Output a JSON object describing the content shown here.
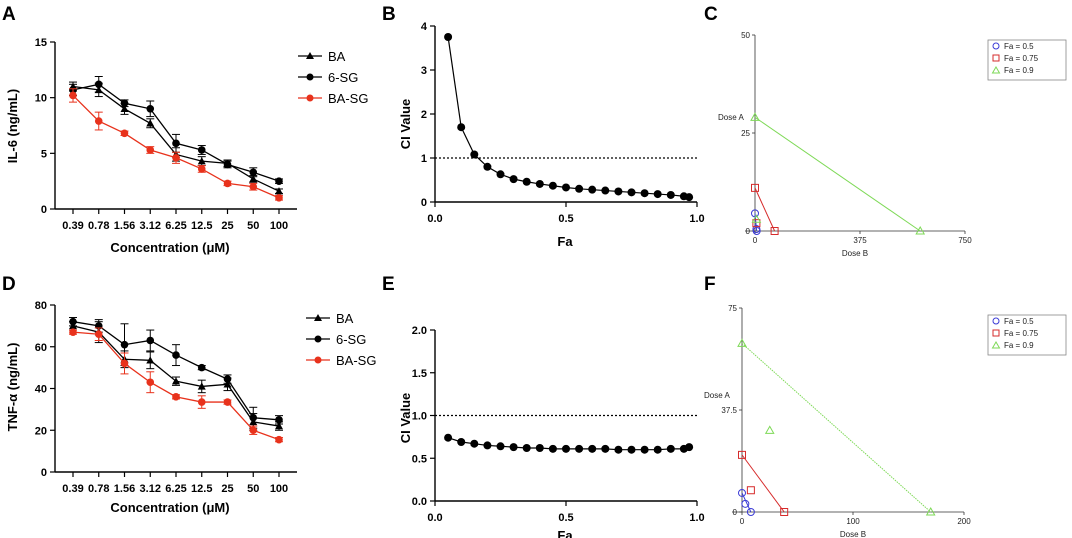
{
  "colors": {
    "ba": "#000000",
    "sg": "#000000",
    "basg": "#e8321c",
    "fa05": "#3b3bd6",
    "fa075": "#d62b2b",
    "fa09": "#7ed957"
  },
  "chart_data": [
    {
      "id": "A",
      "type": "line",
      "panel_label": "A",
      "categories": [
        "0.39",
        "0.78",
        "1.56",
        "3.12",
        "6.25",
        "12.5",
        "25",
        "50",
        "100"
      ],
      "xlabel": "Concentration (μM)",
      "ylabel": "IL-6 (ng/mL)",
      "ylim": [
        0,
        15
      ],
      "yticks": [
        "0",
        "5",
        "10",
        "15"
      ],
      "ytick_values": [
        0,
        5,
        10,
        15
      ],
      "series": [
        {
          "name": "BA",
          "marker": "triangle",
          "values": [
            11.0,
            10.7,
            9.0,
            7.7,
            4.9,
            4.3,
            4.1,
            2.7,
            1.6
          ],
          "errors": [
            0.4,
            0.6,
            0.5,
            0.4,
            0.6,
            0.4,
            0.3,
            0.3,
            0.2
          ]
        },
        {
          "name": "6-SG",
          "marker": "circle",
          "values": [
            10.7,
            11.2,
            9.5,
            9.0,
            5.9,
            5.3,
            4.0,
            3.3,
            2.5
          ],
          "errors": [
            0.5,
            0.7,
            0.3,
            0.7,
            0.8,
            0.4,
            0.3,
            0.4,
            0.2
          ]
        },
        {
          "name": "BA-SG",
          "marker": "circle",
          "values": [
            10.2,
            7.9,
            6.8,
            5.3,
            4.6,
            3.6,
            2.3,
            2.0,
            1.0
          ],
          "errors": [
            0.6,
            0.8,
            0.2,
            0.3,
            0.5,
            0.3,
            0.2,
            0.3,
            0.2
          ]
        }
      ]
    },
    {
      "id": "B",
      "type": "line",
      "panel_label": "B",
      "xlabel": "Fa",
      "ylabel": "CI Value",
      "xlim": [
        0,
        1
      ],
      "ylim": [
        0,
        4
      ],
      "xticks": [
        "0.0",
        "0.5",
        "1.0"
      ],
      "xtick_values": [
        0,
        0.5,
        1
      ],
      "yticks": [
        "0",
        "1",
        "2",
        "3",
        "4"
      ],
      "ytick_values": [
        0,
        1,
        2,
        3,
        4
      ],
      "reference_line": 1,
      "x": [
        0.05,
        0.1,
        0.15,
        0.2,
        0.25,
        0.3,
        0.35,
        0.4,
        0.45,
        0.5,
        0.55,
        0.6,
        0.65,
        0.7,
        0.75,
        0.8,
        0.85,
        0.9,
        0.95,
        0.97
      ],
      "y": [
        3.75,
        1.7,
        1.08,
        0.8,
        0.63,
        0.52,
        0.46,
        0.41,
        0.37,
        0.33,
        0.3,
        0.28,
        0.26,
        0.24,
        0.22,
        0.2,
        0.18,
        0.16,
        0.13,
        0.11
      ]
    },
    {
      "id": "C",
      "type": "scatter",
      "panel_label": "C",
      "xlabel": "Dose B",
      "ylabel": "Dose A",
      "xlim": [
        0,
        750
      ],
      "ylim": [
        0,
        50
      ],
      "xticks": [
        "0",
        "375",
        "750"
      ],
      "xtick_values": [
        0,
        375,
        750
      ],
      "yticks": [
        "0",
        "25",
        "50"
      ],
      "ytick_values": [
        0,
        25,
        50
      ],
      "legend": [
        "Fa = 0.5",
        "Fa = 0.75",
        "Fa = 0.9"
      ],
      "isobolograms": [
        {
          "fa": "0.5",
          "dose_a": 4.5,
          "dose_b": 6,
          "combo_b": 5,
          "combo_a": 0.5
        },
        {
          "fa": "0.75",
          "dose_a": 11,
          "dose_b": 70,
          "combo_b": 5,
          "combo_a": 2
        },
        {
          "fa": "0.9",
          "dose_a": 29,
          "dose_b": 590,
          "combo_b": 5,
          "combo_a": 3
        }
      ]
    },
    {
      "id": "D",
      "type": "line",
      "panel_label": "D",
      "categories": [
        "0.39",
        "0.78",
        "1.56",
        "3.12",
        "6.25",
        "12.5",
        "25",
        "50",
        "100"
      ],
      "xlabel": "Concentration (μM)",
      "ylabel": "TNF-α (ng/mL)",
      "ylim": [
        0,
        80
      ],
      "yticks": [
        "0",
        "20",
        "40",
        "60",
        "80"
      ],
      "ytick_values": [
        0,
        20,
        40,
        60,
        80
      ],
      "series": [
        {
          "name": "BA",
          "marker": "triangle",
          "values": [
            70,
            67,
            54,
            53.5,
            43.5,
            41,
            42,
            24,
            22
          ],
          "errors": [
            2,
            5,
            4,
            4,
            2,
            3,
            3,
            4,
            2
          ]
        },
        {
          "name": "6-SG",
          "marker": "circle",
          "values": [
            72,
            70,
            61,
            63,
            56,
            50,
            44.5,
            26,
            25
          ],
          "errors": [
            2,
            3,
            10,
            5,
            5,
            1,
            2,
            5,
            2
          ]
        },
        {
          "name": "BA-SG",
          "marker": "circle",
          "values": [
            67,
            66,
            52,
            43,
            36,
            33.5,
            33.5,
            20,
            15.5
          ],
          "errors": [
            1,
            3,
            5,
            5,
            1,
            3,
            1,
            2,
            1
          ]
        }
      ]
    },
    {
      "id": "E",
      "type": "line",
      "panel_label": "E",
      "xlabel": "Fa",
      "ylabel": "CI Value",
      "xlim": [
        0,
        1
      ],
      "ylim": [
        0,
        2
      ],
      "xticks": [
        "0.0",
        "0.5",
        "1.0"
      ],
      "xtick_values": [
        0,
        0.5,
        1
      ],
      "yticks": [
        "0.0",
        "0.5",
        "1.0",
        "1.5",
        "2.0"
      ],
      "ytick_values": [
        0,
        0.5,
        1,
        1.5,
        2
      ],
      "reference_line": 1,
      "x": [
        0.05,
        0.1,
        0.15,
        0.2,
        0.25,
        0.3,
        0.35,
        0.4,
        0.45,
        0.5,
        0.55,
        0.6,
        0.65,
        0.7,
        0.75,
        0.8,
        0.85,
        0.9,
        0.95,
        0.97
      ],
      "y": [
        0.74,
        0.69,
        0.67,
        0.65,
        0.64,
        0.63,
        0.62,
        0.62,
        0.61,
        0.61,
        0.61,
        0.61,
        0.61,
        0.6,
        0.6,
        0.6,
        0.6,
        0.61,
        0.61,
        0.63
      ]
    },
    {
      "id": "F",
      "type": "scatter",
      "panel_label": "F",
      "xlabel": "Dose B",
      "ylabel": "Dose A",
      "xlim": [
        0,
        200
      ],
      "ylim": [
        0,
        75
      ],
      "xticks": [
        "0",
        "100",
        "200"
      ],
      "xtick_values": [
        0,
        100,
        200
      ],
      "yticks": [
        "0",
        "37.5",
        "75"
      ],
      "ytick_values": [
        0,
        37.5,
        75
      ],
      "legend": [
        "Fa = 0.5",
        "Fa = 0.75",
        "Fa = 0.9"
      ],
      "isobolograms": [
        {
          "fa": "0.5",
          "dose_a": 7,
          "dose_b": 8,
          "combo_b": 3,
          "combo_a": 3
        },
        {
          "fa": "0.75",
          "dose_a": 21,
          "dose_b": 38,
          "combo_b": 8,
          "combo_a": 8
        },
        {
          "fa": "0.9",
          "dose_a": 62,
          "dose_b": 170,
          "combo_b": 25,
          "combo_a": 30
        }
      ]
    }
  ]
}
